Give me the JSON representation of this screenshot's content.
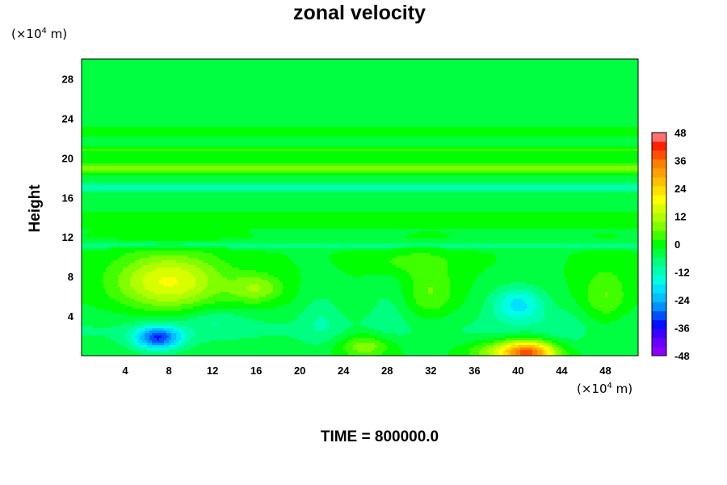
{
  "chart_data": {
    "type": "heatmap",
    "title": "zonal velocity",
    "ylabel": "Height",
    "xunit": "(×10",
    "xunit_exp": "4",
    "xunit_tail": " m)",
    "yunit": "(×10",
    "yunit_exp": "4",
    "yunit_tail": " m)",
    "footer": "TIME = 800000.0",
    "xlim": [
      0,
      51
    ],
    "ylim": [
      0,
      30
    ],
    "xticks": [
      4,
      8,
      12,
      16,
      20,
      24,
      28,
      32,
      36,
      40,
      44,
      48
    ],
    "yticks": [
      4,
      8,
      12,
      16,
      20,
      24,
      28
    ],
    "colorbar": {
      "min": -48,
      "max": 48,
      "step": 4,
      "ticks": [
        48,
        36,
        24,
        12,
        0,
        -12,
        -24,
        -36,
        -48
      ],
      "colors": [
        "#8b00ff",
        "#6a00ff",
        "#3a00ff",
        "#0010ff",
        "#0050ff",
        "#0090ff",
        "#00c0ff",
        "#00e0ff",
        "#00ffe0",
        "#00ffb0",
        "#00ff80",
        "#00ff40",
        "#00ff00",
        "#40ff00",
        "#80ff00",
        "#b0ff00",
        "#d8ff00",
        "#ffff00",
        "#ffe000",
        "#ffc000",
        "#ffa000",
        "#ff8000",
        "#ff5000",
        "#ff2000",
        "#ff7070"
      ]
    },
    "background_value": -2,
    "bands": [
      {
        "y": 19.0,
        "sy": 0.55,
        "a": 10
      },
      {
        "y": 20.8,
        "sy": 0.35,
        "a": 4
      },
      {
        "y": 21.6,
        "sy": 0.3,
        "a": -3
      },
      {
        "y": 22.6,
        "sy": 0.3,
        "a": 2
      },
      {
        "y": 17.0,
        "sy": 0.7,
        "a": -8
      },
      {
        "y": 15.2,
        "sy": 0.5,
        "a": -3
      },
      {
        "y": 13.8,
        "sy": 0.5,
        "a": 2
      },
      {
        "y": 11.2,
        "sy": 0.35,
        "a": -7
      },
      {
        "y": 2.6,
        "sy": 2.0,
        "a": -4
      }
    ],
    "blobs": [
      {
        "x": 8,
        "y": 7.5,
        "sx": 4.8,
        "sy": 2.8,
        "a": 20
      },
      {
        "x": 7,
        "y": 1.8,
        "sx": 2.2,
        "sy": 1.2,
        "a": -28
      },
      {
        "x": 41,
        "y": 0.3,
        "sx": 2.5,
        "sy": 1.2,
        "a": 38
      },
      {
        "x": 40,
        "y": 5.2,
        "sx": 2.5,
        "sy": 1.8,
        "a": -16
      },
      {
        "x": 16,
        "y": 6.8,
        "sx": 2.4,
        "sy": 1.5,
        "a": 11
      },
      {
        "x": 26,
        "y": 1.0,
        "sx": 2.5,
        "sy": 1.2,
        "a": 12
      },
      {
        "x": 32,
        "y": 6.5,
        "sx": 2.2,
        "sy": 2.8,
        "a": 8
      },
      {
        "x": 38,
        "y": 0.5,
        "sx": 3.0,
        "sy": 1.0,
        "a": 10
      },
      {
        "x": 22,
        "y": 4.0,
        "sx": 1.8,
        "sy": 3.0,
        "a": -5
      },
      {
        "x": 28,
        "y": 5.0,
        "sx": 1.8,
        "sy": 3.0,
        "a": -4
      },
      {
        "x": 48,
        "y": 6.0,
        "sx": 2.0,
        "sy": 3.0,
        "a": 8
      },
      {
        "x": 30,
        "y": 9.5,
        "sx": 4.0,
        "sy": 1.2,
        "a": 5
      },
      {
        "x": 12,
        "y": 3.5,
        "sx": 3.0,
        "sy": 1.5,
        "a": -5
      },
      {
        "x": 44,
        "y": 3.0,
        "sx": 2.0,
        "sy": 2.0,
        "a": -3
      }
    ]
  }
}
